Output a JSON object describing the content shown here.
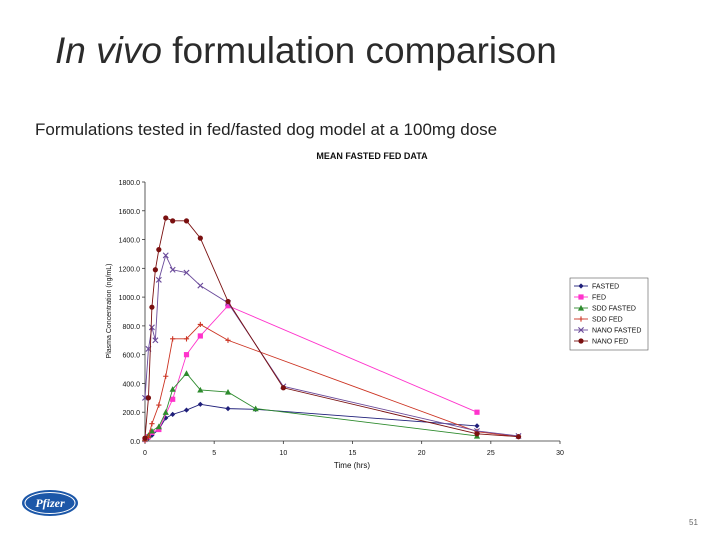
{
  "slide": {
    "title_italic": "In vivo",
    "title_rest": " formulation comparison",
    "subtitle": "Formulations tested in fed/fasted dog model at a 100mg dose",
    "logo_text": "Pfizer",
    "page_number": "51"
  },
  "chart_data": {
    "type": "line",
    "title": "MEAN FASTED FED DATA",
    "xlabel": "Time (hrs)",
    "ylabel": "Plasma Concentration (ng/mL)",
    "xlim": [
      0,
      30
    ],
    "ylim": [
      0,
      1800
    ],
    "x_ticks": [
      0,
      5,
      10,
      15,
      20,
      25,
      30
    ],
    "y_ticks": [
      0,
      200,
      400,
      600,
      800,
      1000,
      1200,
      1400,
      1600,
      1800
    ],
    "y_tick_labels": [
      "0.0",
      "200.0",
      "400.0",
      "600.0",
      "800.0",
      "1000.0",
      "1200.0",
      "1400.0",
      "1600.0",
      "1800.0"
    ],
    "grid": false,
    "legend_position": "right",
    "series": [
      {
        "name": "FASTED",
        "color": "#1f1f7a",
        "marker": "diamond",
        "x": [
          0,
          0.25,
          0.5,
          1,
          1.5,
          2,
          3,
          4,
          6,
          8,
          24
        ],
        "y": [
          5,
          20,
          40,
          80,
          160,
          185,
          215,
          255,
          225,
          220,
          105
        ]
      },
      {
        "name": "FED",
        "color": "#ff33cc",
        "marker": "square",
        "x": [
          0,
          0.25,
          0.5,
          1,
          2,
          3,
          4,
          6,
          24
        ],
        "y": [
          10,
          30,
          60,
          80,
          290,
          600,
          730,
          940,
          200
        ]
      },
      {
        "name": "SDD FASTED",
        "color": "#2e8b2e",
        "marker": "triangle",
        "x": [
          0,
          0.25,
          0.5,
          1,
          1.5,
          2,
          3,
          4,
          6,
          8,
          24
        ],
        "y": [
          15,
          40,
          70,
          100,
          200,
          360,
          470,
          355,
          340,
          225,
          35
        ]
      },
      {
        "name": "SDD FED",
        "color": "#cc3322",
        "marker": "cross",
        "x": [
          0,
          0.25,
          0.5,
          1,
          1.5,
          2,
          3,
          4,
          6,
          24,
          27
        ],
        "y": [
          5,
          30,
          120,
          250,
          450,
          710,
          710,
          810,
          700,
          65,
          30
        ]
      },
      {
        "name": "NANO FASTED",
        "color": "#6a4a9a",
        "marker": "x",
        "x": [
          0,
          0.25,
          0.5,
          0.75,
          1,
          1.5,
          2,
          3,
          4,
          6,
          10,
          24,
          27
        ],
        "y": [
          300,
          640,
          790,
          700,
          1120,
          1290,
          1190,
          1170,
          1080,
          960,
          380,
          70,
          35
        ]
      },
      {
        "name": "NANO FED",
        "color": "#7a1010",
        "marker": "circle",
        "x": [
          0,
          0.25,
          0.5,
          0.75,
          1,
          1.5,
          2,
          3,
          4,
          6,
          10,
          24,
          27
        ],
        "y": [
          20,
          300,
          930,
          1190,
          1330,
          1550,
          1530,
          1530,
          1410,
          970,
          370,
          50,
          30
        ]
      }
    ]
  }
}
